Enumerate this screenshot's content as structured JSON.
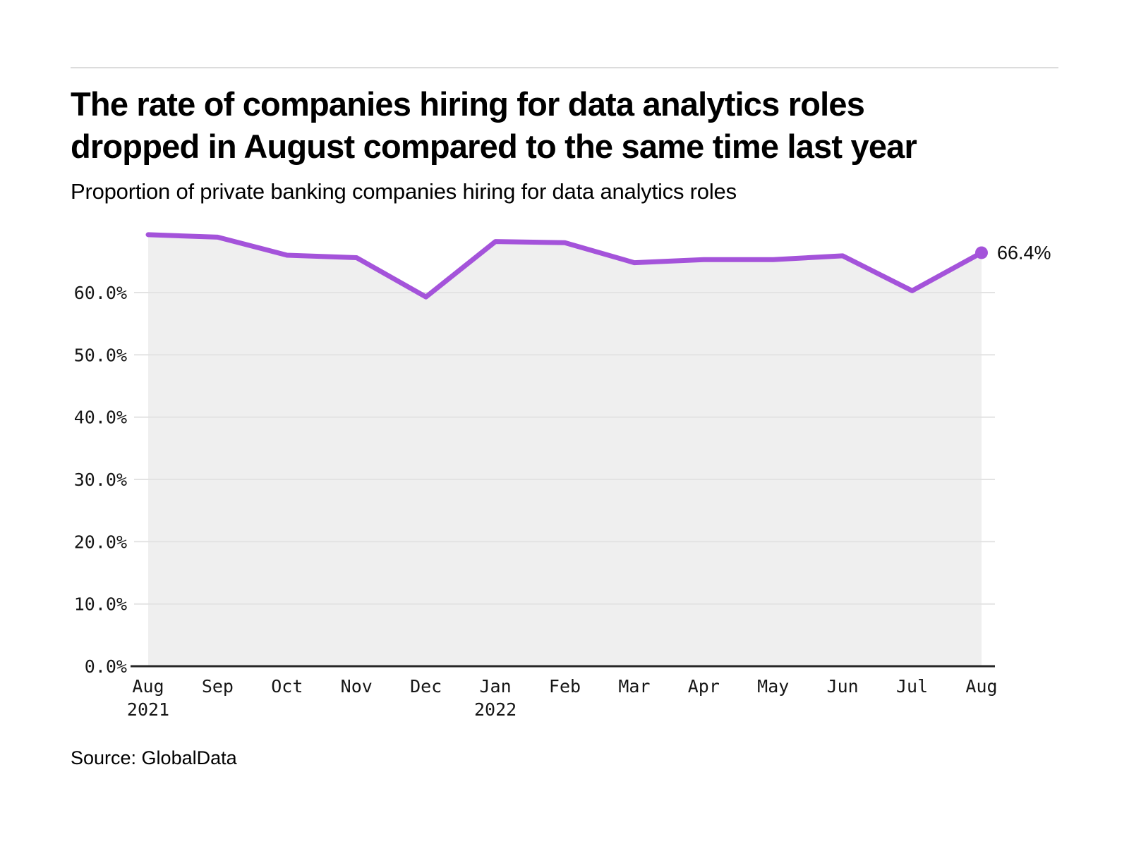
{
  "page": {
    "title_line1": "The rate of companies hiring for data analytics roles",
    "title_line2": "dropped in August compared to the same time last year",
    "subtitle": "Proportion of private banking companies hiring for data analytics roles",
    "source": "Source: GlobalData"
  },
  "colors": {
    "line": "#a453da",
    "area_fill": "#efefef",
    "gridline": "#e3e3e3",
    "axis": "#262626",
    "top_rule": "#dcdcdc",
    "text": "#000000"
  },
  "chart_data": {
    "type": "line",
    "title": "The rate of companies hiring for data analytics roles dropped in August compared to the same time last year",
    "subtitle": "Proportion of private banking companies hiring for data analytics roles",
    "categories": [
      "Aug",
      "Sep",
      "Oct",
      "Nov",
      "Dec",
      "Jan",
      "Feb",
      "Mar",
      "Apr",
      "May",
      "Jun",
      "Jul",
      "Aug"
    ],
    "category_sublabels": [
      "2021",
      "",
      "",
      "",
      "",
      "2022",
      "",
      "",
      "",
      "",
      "",
      "",
      ""
    ],
    "series": [
      {
        "name": "Proportion of private banking companies hiring for data analytics roles",
        "values": [
          69.3,
          68.9,
          66.0,
          65.6,
          59.3,
          68.2,
          68.0,
          64.8,
          65.3,
          65.3,
          65.9,
          60.3,
          66.4
        ]
      }
    ],
    "end_point_label": "66.4%",
    "xlabel": "",
    "ylabel": "",
    "ylim": [
      0,
      72
    ],
    "yticks": [
      0,
      10,
      20,
      30,
      40,
      50,
      60
    ],
    "ytick_labels": [
      "0.0%",
      "10.0%",
      "20.0%",
      "30.0%",
      "40.0%",
      "50.0%",
      "60.0%"
    ],
    "grid": "horizontal",
    "legend_position": "none",
    "area_under_line": true
  }
}
